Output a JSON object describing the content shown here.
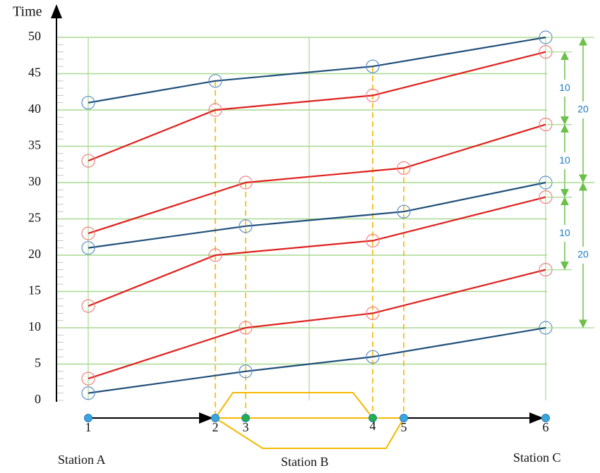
{
  "chart_data": {
    "type": "line",
    "y_label": "Time",
    "ylim": [
      0,
      50
    ],
    "yticks": [
      0,
      5,
      10,
      15,
      20,
      25,
      30,
      35,
      40,
      45,
      50
    ],
    "grid": true,
    "nodes": [
      "1",
      "2",
      "3",
      "4",
      "5",
      "6"
    ],
    "node_colors": [
      "#3aa6e0",
      "#3aa6e0",
      "#1fb04a",
      "#1fb04a",
      "#3aa6e0",
      "#3aa6e0"
    ],
    "stations": [
      "Station A",
      "Station  B",
      "Station C"
    ],
    "series": [
      {
        "color": "#1f4e79",
        "x": [
          1,
          2,
          4,
          6
        ],
        "values": [
          41,
          44,
          46,
          50
        ]
      },
      {
        "color": "#e0201c",
        "x": [
          1,
          2,
          4,
          6
        ],
        "values": [
          33,
          40,
          42,
          48
        ]
      },
      {
        "color": "#e0201c",
        "x": [
          1,
          3,
          5,
          6
        ],
        "values": [
          23,
          30,
          32,
          38
        ]
      },
      {
        "color": "#1f4e79",
        "x": [
          1,
          3,
          5,
          6
        ],
        "values": [
          21,
          24,
          26,
          30
        ]
      },
      {
        "color": "#e0201c",
        "x": [
          1,
          2,
          4,
          6
        ],
        "values": [
          13,
          20,
          22,
          28
        ]
      },
      {
        "color": "#e0201c",
        "x": [
          1,
          3,
          4,
          6
        ],
        "values": [
          3,
          10,
          12,
          18
        ]
      },
      {
        "color": "#1f4e79",
        "x": [
          1,
          3,
          4,
          6
        ],
        "values": [
          1,
          4,
          6,
          10
        ]
      }
    ],
    "annotations": [
      {
        "from": 48,
        "to": 38,
        "value": 10,
        "column": 0
      },
      {
        "from": 38,
        "to": 28,
        "value": 10,
        "column": 0
      },
      {
        "from": 28,
        "to": 18,
        "value": 10,
        "column": 0
      },
      {
        "from": 50,
        "to": 30,
        "value": 20,
        "column": 1
      },
      {
        "from": 30,
        "to": 10,
        "value": 20,
        "column": 1
      }
    ]
  }
}
